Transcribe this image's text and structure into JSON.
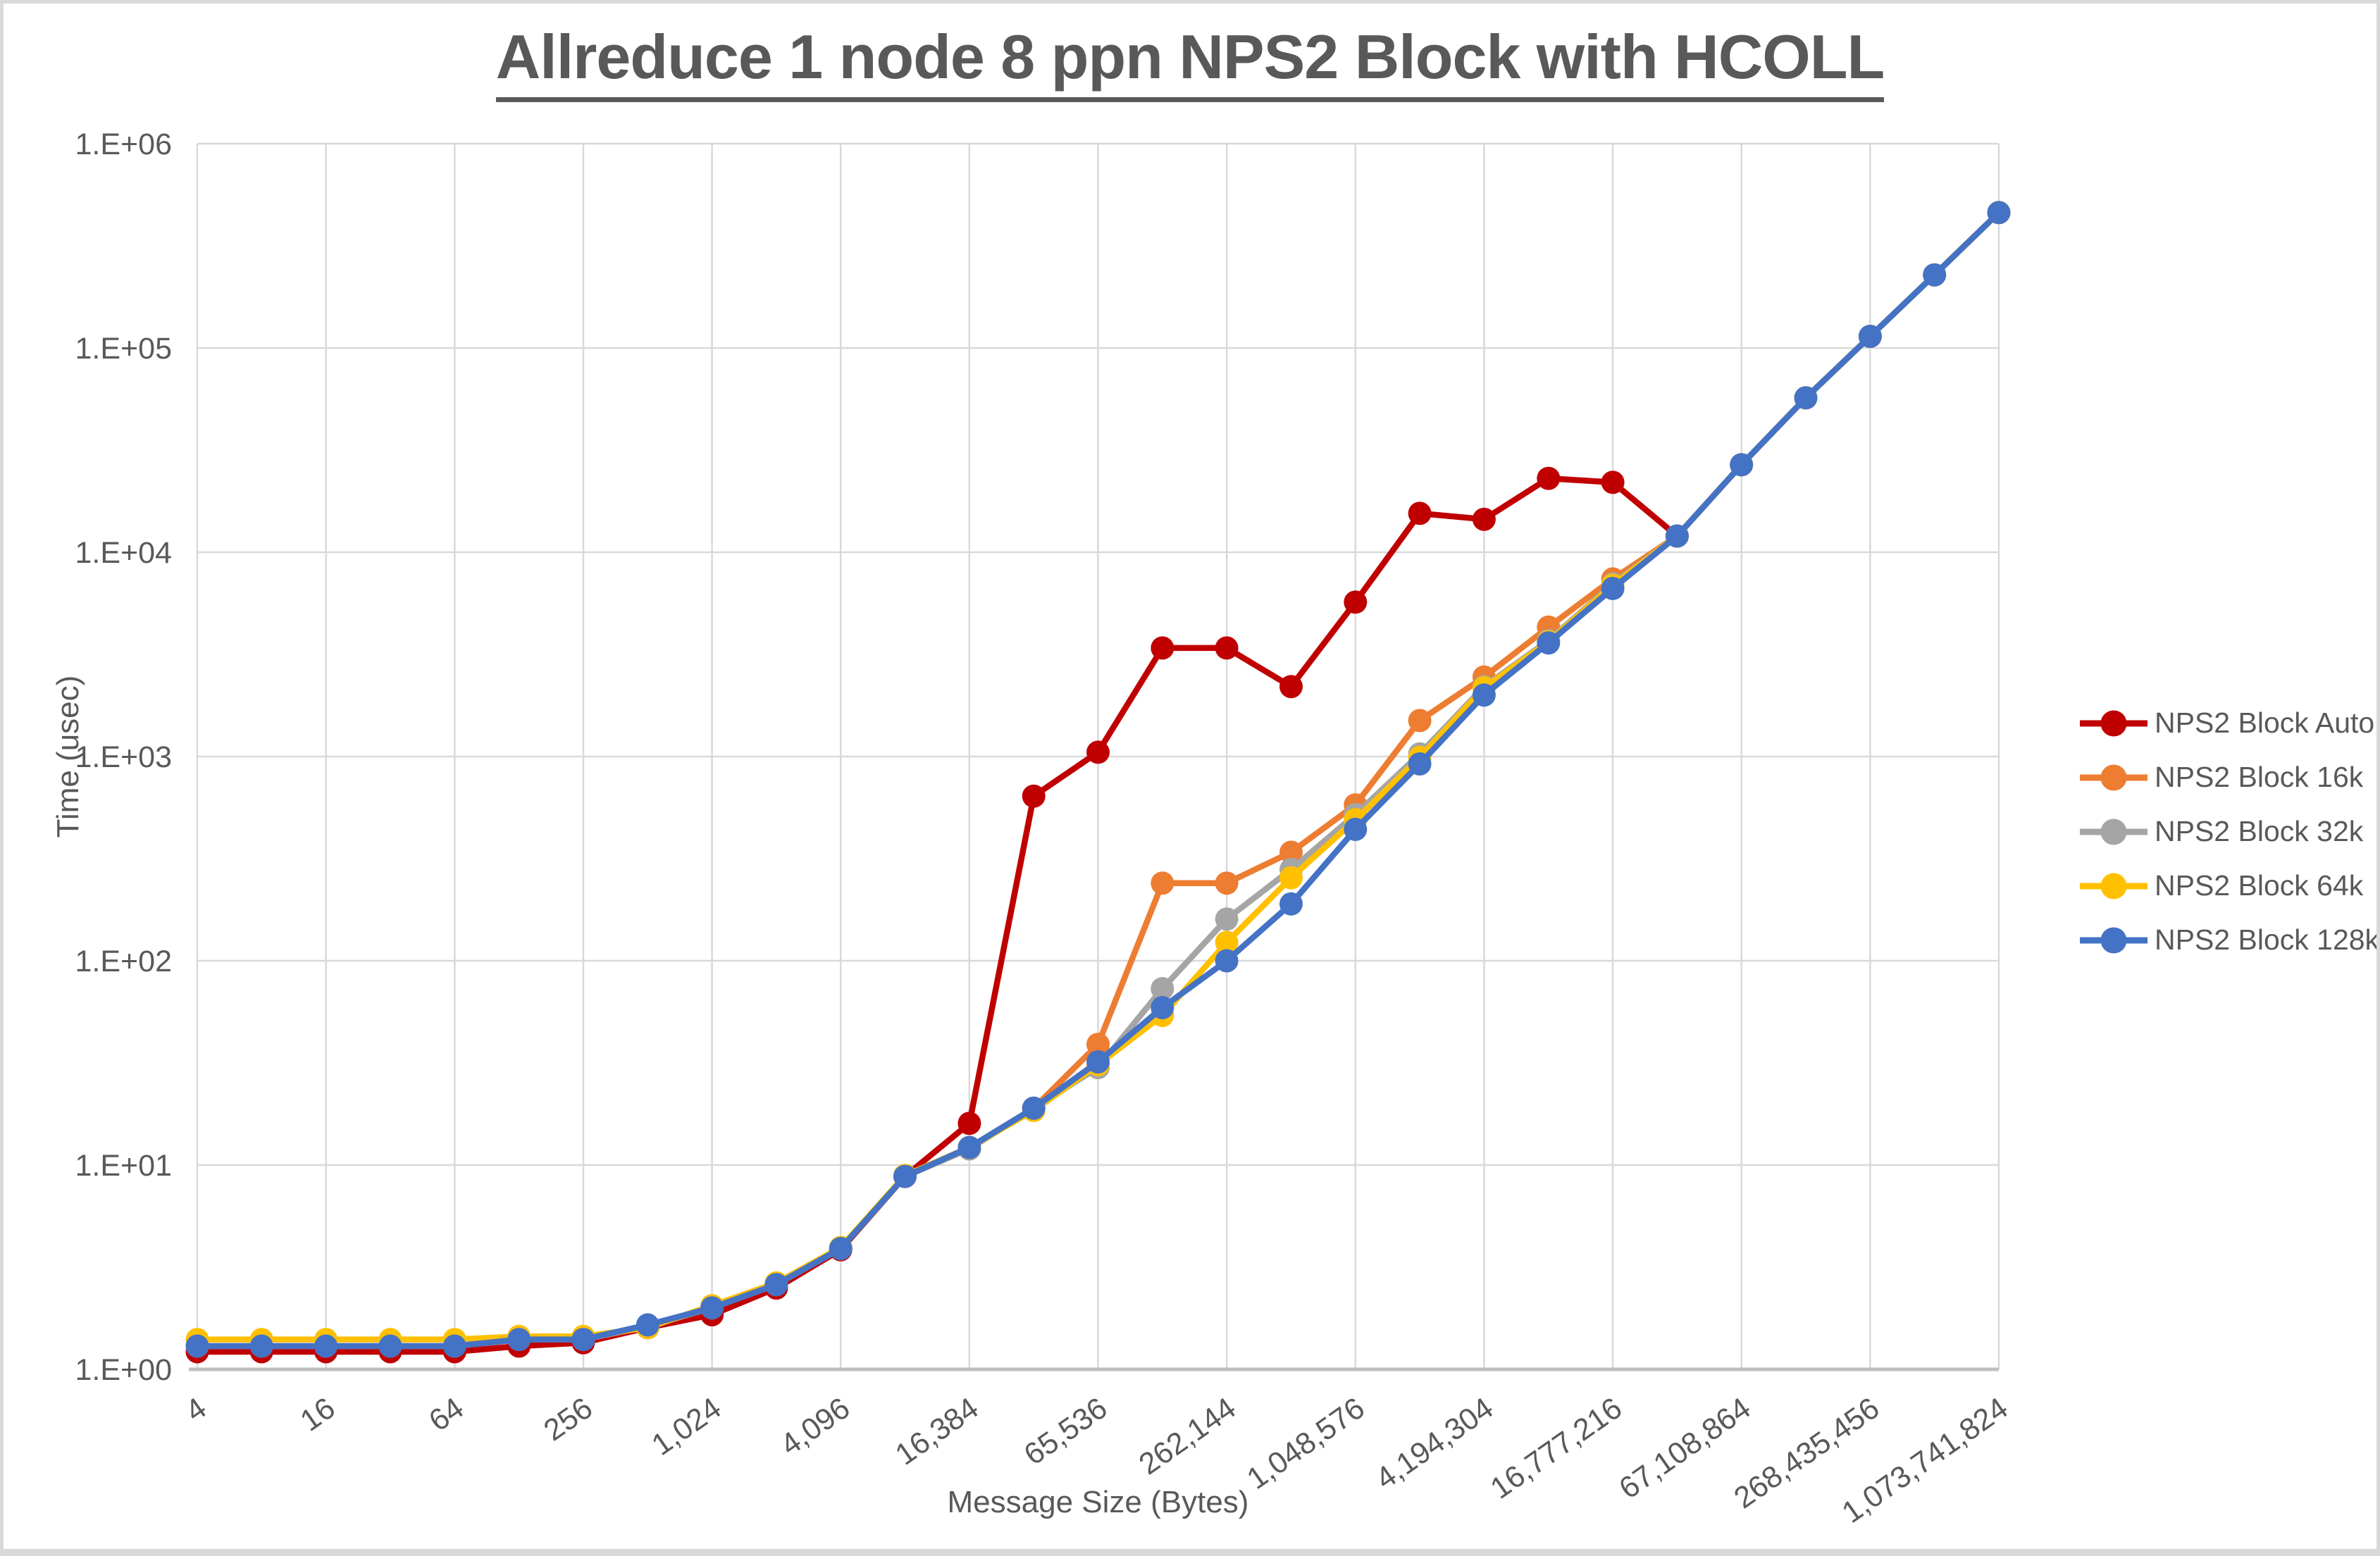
{
  "page": {
    "title": "Allreduce 1 node 8 ppn NPS2 Block with HCOLL"
  },
  "chart_data": {
    "type": "line",
    "title": "Allreduce 1 node 8 ppn NPS2 Block with HCOLL",
    "xlabel": "Message Size (Bytes)",
    "ylabel": "Time (usec)",
    "x_scale": "log2",
    "y_scale": "log10",
    "xlim": [
      4,
      1073741824
    ],
    "ylim": [
      1,
      1000000
    ],
    "grid": true,
    "legend_position": "right",
    "x": [
      4,
      8,
      16,
      32,
      64,
      128,
      256,
      512,
      1024,
      2048,
      4096,
      8192,
      16384,
      32768,
      65536,
      131072,
      262144,
      524288,
      1048576,
      2097152,
      4194304,
      8388608,
      16777216,
      33554432,
      67108864,
      134217728,
      268435456,
      536870912,
      1073741824
    ],
    "x_tick_labels": [
      "4",
      "16",
      "64",
      "256",
      "1,024",
      "4,096",
      "16,384",
      "65,536",
      "262,144",
      "1,048,576",
      "4,194,304",
      "16,777,216",
      "67,108,864",
      "268,435,456",
      "1,073,741,824"
    ],
    "y_tick_labels": [
      "1.E+00",
      "1.E+01",
      "1.E+02",
      "1.E+03",
      "1.E+04",
      "1.E+05",
      "1.E+06"
    ],
    "series": [
      {
        "name": "NPS2 Block Auto",
        "color": "#C00000",
        "values": [
          1.22,
          1.22,
          1.22,
          1.22,
          1.22,
          1.3,
          1.35,
          1.6,
          1.85,
          2.5,
          3.85,
          8.8,
          16,
          640,
          1050,
          3400,
          3400,
          2200,
          5700,
          15500,
          14500,
          23000,
          22000,
          12000,
          null,
          null,
          null,
          null,
          null
        ]
      },
      {
        "name": "NPS2 Block 16k",
        "color": "#ED7D31",
        "values": [
          1.3,
          1.3,
          1.3,
          1.3,
          1.3,
          1.4,
          1.4,
          1.62,
          2.0,
          2.6,
          3.9,
          8.8,
          12,
          19,
          39,
          240,
          240,
          340,
          580,
          1500,
          2450,
          4300,
          7400,
          12000,
          26800,
          57000,
          114000,
          228000,
          460000
        ]
      },
      {
        "name": "NPS2 Block 32k",
        "color": "#A5A5A5",
        "values": [
          1.3,
          1.3,
          1.3,
          1.3,
          1.3,
          1.4,
          1.4,
          1.63,
          2.0,
          2.6,
          3.9,
          8.8,
          12,
          19,
          30,
          73,
          160,
          280,
          520,
          1030,
          2200,
          3700,
          7000,
          12000,
          26800,
          57000,
          114000,
          228000,
          460000
        ]
      },
      {
        "name": "NPS2 Block 64k",
        "color": "#FFC000",
        "values": [
          1.4,
          1.4,
          1.4,
          1.4,
          1.4,
          1.45,
          1.45,
          1.6,
          2.05,
          2.65,
          3.95,
          8.9,
          12.2,
          18.5,
          31,
          54,
          123,
          255,
          490,
          990,
          2170,
          3650,
          6900,
          12000,
          26800,
          57000,
          114000,
          228000,
          460000
        ]
      },
      {
        "name": "NPS2 Block 128k",
        "color": "#4472C4",
        "values": [
          1.3,
          1.3,
          1.3,
          1.3,
          1.3,
          1.4,
          1.4,
          1.65,
          2.0,
          2.6,
          3.9,
          8.8,
          12.2,
          19,
          32,
          59,
          100,
          190,
          440,
          920,
          2000,
          3600,
          6650,
          12000,
          26800,
          57000,
          114000,
          228000,
          460000
        ]
      }
    ]
  },
  "colors": {
    "text": "#595959",
    "grid": "#D9D9D9",
    "axis": "#BFBFBF",
    "background": "#FFFFFF",
    "frame": "#D9D9D9"
  }
}
